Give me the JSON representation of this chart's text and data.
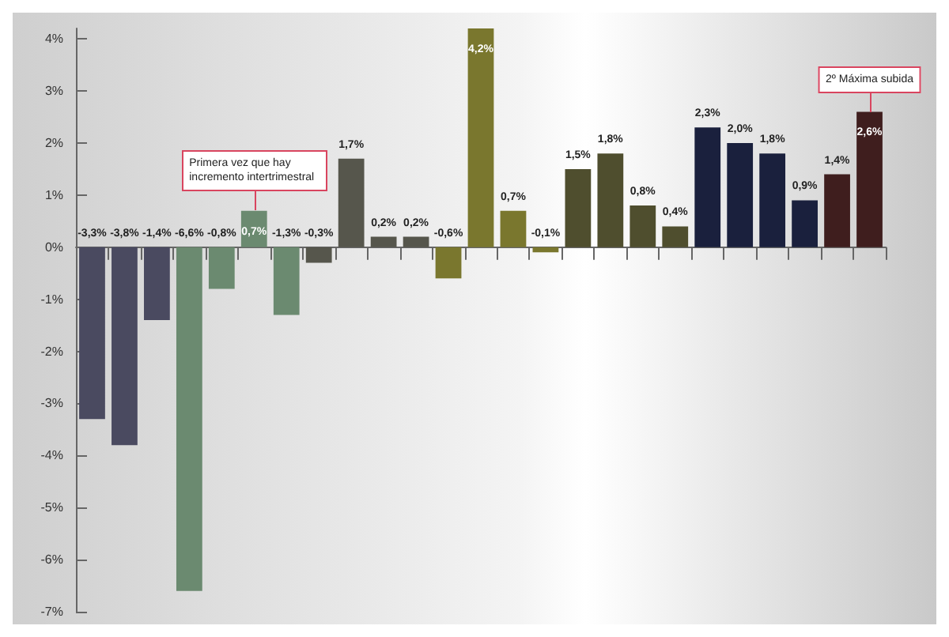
{
  "chart_data": {
    "type": "bar",
    "categories": [
      null,
      null,
      null,
      null,
      null,
      null,
      null,
      null,
      null,
      null,
      null,
      null,
      null,
      null,
      null,
      null,
      null,
      null,
      null,
      null,
      null,
      null,
      null,
      null,
      null
    ],
    "values": [
      -3.3,
      -3.8,
      -1.4,
      -6.6,
      -0.8,
      0.7,
      -1.3,
      -0.3,
      1.7,
      0.2,
      0.2,
      -0.6,
      4.2,
      0.7,
      -0.1,
      1.5,
      1.8,
      0.8,
      0.4,
      2.3,
      2.0,
      1.8,
      0.9,
      1.4,
      2.6
    ],
    "value_labels": [
      "-3,3%",
      "-3,8%",
      "-1,4%",
      "-6,6%",
      "-0,8%",
      "0,7%",
      "-1,3%",
      "-0,3%",
      "1,7%",
      "0,2%",
      "0,2%",
      "-0,6%",
      "4,2%",
      "0,7%",
      "-0,1%",
      "1,5%",
      "1,8%",
      "0,8%",
      "0,4%",
      "2,3%",
      "2,0%",
      "1,8%",
      "0,9%",
      "1,4%",
      "2,6%"
    ],
    "colors": [
      "#4a4a60",
      "#4a4a60",
      "#4a4a60",
      "#6b8a70",
      "#6b8a70",
      "#6b8a70",
      "#6b8a70",
      "#56564c",
      "#56564c",
      "#56564c",
      "#56564c",
      "#7a772e",
      "#7a772e",
      "#7a772e",
      "#7a772e",
      "#4f4e2e",
      "#4f4e2e",
      "#4f4e2e",
      "#4f4e2e",
      "#1a203d",
      "#1a203d",
      "#1a203d",
      "#1a203d",
      "#3f1e1e",
      "#3f1e1e"
    ],
    "ylim": [
      -7,
      4.2
    ],
    "yticks": [
      {
        "value": -7,
        "label": "-7%"
      },
      {
        "value": -6,
        "label": "-6%"
      },
      {
        "value": -5,
        "label": "-5%"
      },
      {
        "value": -4,
        "label": "-4%"
      },
      {
        "value": -3,
        "label": "-3%"
      },
      {
        "value": -2,
        "label": "-2%"
      },
      {
        "value": -1,
        "label": "-1%"
      },
      {
        "value": 0,
        "label": "0%"
      },
      {
        "value": 1,
        "label": "1%"
      },
      {
        "value": 2,
        "label": "2%"
      },
      {
        "value": 3,
        "label": "3%"
      },
      {
        "value": 4,
        "label": "4%"
      }
    ],
    "annotations": [
      {
        "text": "Primera vez que hay incremento intertrimestral",
        "y": 0.7
      },
      {
        "text": "2º Máxima subida",
        "y": 2.6
      }
    ]
  }
}
